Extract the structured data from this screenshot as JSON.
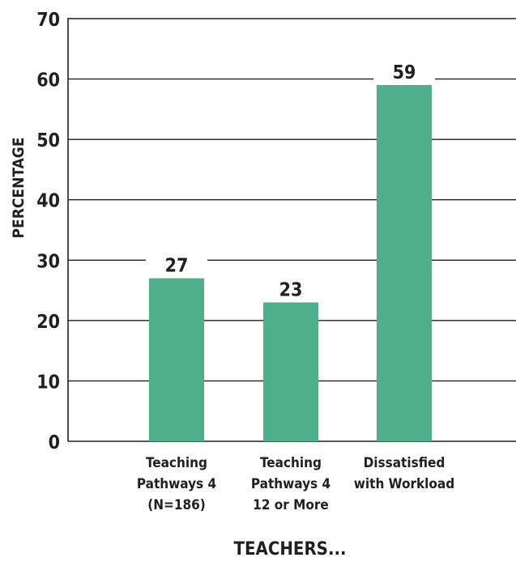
{
  "chart_data": {
    "type": "bar",
    "categories": [
      [
        "Teaching",
        "Pathways 4",
        "(N=186)"
      ],
      [
        "Teaching",
        "Pathways 4",
        "12 or More"
      ],
      [
        "Dissatisfied",
        "with Workload"
      ]
    ],
    "values": [
      27,
      23,
      59
    ],
    "data_labels": [
      "27",
      "23",
      "59"
    ],
    "xlabel": "TEACHERS...",
    "ylabel": "PERCENTAGE",
    "ylim": [
      0,
      70
    ],
    "yticks": [
      0,
      10,
      20,
      30,
      40,
      50,
      60,
      70
    ],
    "grid": true,
    "bar_color": "#4fae8c",
    "text_color": "#231f20"
  }
}
